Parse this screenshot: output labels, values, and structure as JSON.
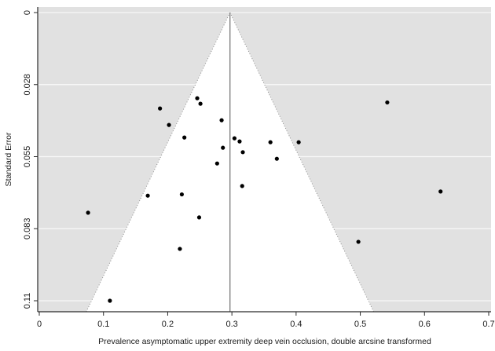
{
  "chart_data": {
    "type": "scatter",
    "subtype": "funnel-plot",
    "title": "",
    "xlabel": "Prevalence asymptomatic upper extremity deep vein occlusion, double arcsine transformed",
    "ylabel": "Standard Error",
    "xlim": [
      0,
      0.7
    ],
    "ylim": [
      0,
      0.11
    ],
    "y_axis_inverted_note": "standard error increases downward, 0 at top",
    "x_ticks": [
      0,
      0.1,
      0.2,
      0.3,
      0.4,
      0.5,
      0.6,
      0.7
    ],
    "x_tick_labels": [
      "0",
      "0.1",
      "0.2",
      "0.3",
      "0.4",
      "0.5",
      "0.6",
      "0.7"
    ],
    "y_ticks": [
      0,
      0.0275,
      0.055,
      0.0825,
      0.11
    ],
    "y_tick_labels": [
      "0",
      "0.028",
      "0.055",
      "0.083",
      "0.11"
    ],
    "grid": "horizontal white gridlines on gray panel",
    "legend": "none",
    "panel_color": "#e1e1e1",
    "grid_color": "#f8f8f8",
    "axis_color": "#2a2a2a",
    "point_color": "#000000",
    "funnel": {
      "center": 0.297,
      "ci_multiplier": 1.96,
      "fill": "#ffffff",
      "edge_style": "dotted",
      "edge_color": "#8f8f8f",
      "center_line_color": "#828282"
    },
    "points": [
      {
        "x": 0.188,
        "se": 0.0366
      },
      {
        "x": 0.246,
        "se": 0.0327
      },
      {
        "x": 0.251,
        "se": 0.0348
      },
      {
        "x": 0.202,
        "se": 0.0429
      },
      {
        "x": 0.226,
        "se": 0.0477
      },
      {
        "x": 0.284,
        "se": 0.0411
      },
      {
        "x": 0.304,
        "se": 0.048
      },
      {
        "x": 0.312,
        "se": 0.0492
      },
      {
        "x": 0.317,
        "se": 0.0533
      },
      {
        "x": 0.286,
        "se": 0.0516
      },
      {
        "x": 0.277,
        "se": 0.0576
      },
      {
        "x": 0.316,
        "se": 0.0662
      },
      {
        "x": 0.36,
        "se": 0.0495
      },
      {
        "x": 0.37,
        "se": 0.0558
      },
      {
        "x": 0.404,
        "se": 0.0495
      },
      {
        "x": 0.542,
        "se": 0.0343
      },
      {
        "x": 0.625,
        "se": 0.0683
      },
      {
        "x": 0.497,
        "se": 0.0875
      },
      {
        "x": 0.076,
        "se": 0.0764
      },
      {
        "x": 0.169,
        "se": 0.0699
      },
      {
        "x": 0.222,
        "se": 0.0694
      },
      {
        "x": 0.249,
        "se": 0.0782
      },
      {
        "x": 0.219,
        "se": 0.0902
      },
      {
        "x": 0.11,
        "se": 0.11
      }
    ]
  }
}
